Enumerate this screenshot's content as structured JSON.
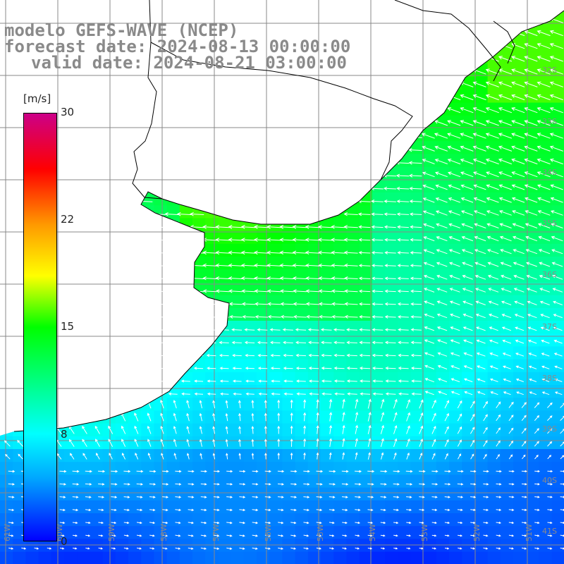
{
  "title": {
    "line1": "modelo GEFS-WAVE (NCEP)",
    "line2": "forecast date: 2024-08-13 00:00:00",
    "line3": "valid date: 2024-08-21 03:00:00"
  },
  "colorbar": {
    "unit": "[m/s]",
    "ticks": [
      "30",
      "22",
      "15",
      "8",
      "0"
    ],
    "colors": [
      "#0000ff",
      "#00aaff",
      "#00ffff",
      "#00ff00",
      "#ffff00",
      "#ff9900",
      "#ff0000",
      "#cc0088"
    ]
  },
  "lat_labels": [
    "32S",
    "33S",
    "34S",
    "35S",
    "36S",
    "37S",
    "38S",
    "39S",
    "40S",
    "41S"
  ],
  "lon_labels": [
    "61W",
    "60W",
    "59W",
    "58W",
    "57W",
    "56W",
    "55W",
    "54W",
    "53W",
    "52W",
    "51W"
  ],
  "colors": {
    "land": "#ffffff",
    "grid": "#888888",
    "coast": "#000000",
    "arrows": "#ffffff",
    "labels": "#8a8a8a"
  }
}
